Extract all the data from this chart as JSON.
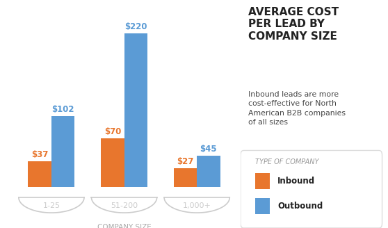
{
  "categories": [
    "1-25",
    "51-200",
    "1,000+"
  ],
  "inbound": [
    37,
    70,
    27
  ],
  "outbound": [
    102,
    220,
    45
  ],
  "inbound_color": "#E8762D",
  "outbound_color": "#5B9BD5",
  "bar_width": 0.32,
  "title_line1": "AVERAGE COST",
  "title_line2": "PER LEAD BY",
  "title_line3": "COMPANY SIZE",
  "subtitle": "Inbound leads are more\ncost-effective for North\nAmerican B2B companies\nof all sizes",
  "legend_title": "TYPE OF COMPANY",
  "legend_inbound": "Inbound",
  "legend_outbound": "Outbound",
  "xlabel": "COMPANY SIZE",
  "background_color": "#FFFFFF",
  "arc_color": "#CCCCCC",
  "xlabel_color": "#AAAAAA",
  "legend_box_color": "#DDDDDD"
}
